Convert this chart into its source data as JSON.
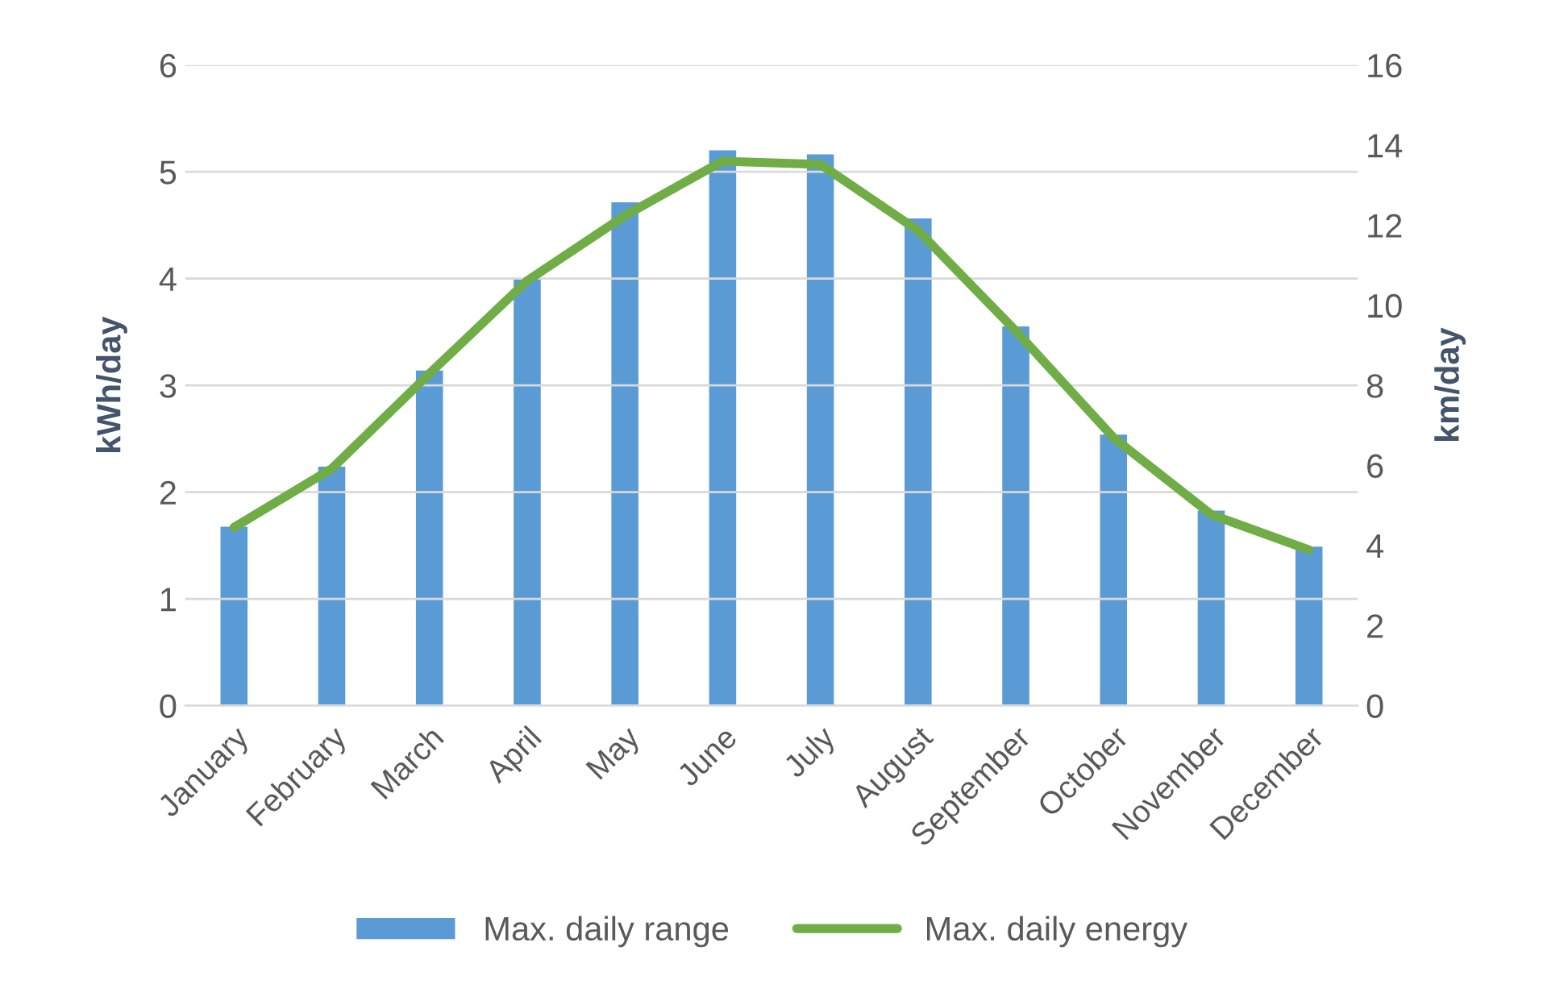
{
  "chart_data": {
    "type": "bar",
    "ylabel": "kWh/day",
    "y2label": "km/day",
    "categories": [
      "January",
      "February",
      "March",
      "April",
      "May",
      "June",
      "July",
      "August",
      "September",
      "October",
      "November",
      "December"
    ],
    "series": [
      {
        "name": "Max. daily range",
        "axis": "y2",
        "color": "#5b9bd5",
        "values": [
          4.5,
          6.0,
          8.4,
          10.7,
          12.6,
          13.9,
          13.8,
          12.2,
          9.5,
          6.8,
          4.9,
          4.0
        ]
      },
      {
        "name": "Max. daily energy",
        "type": "line",
        "axis": "y",
        "color": "#70ad47",
        "values": [
          1.67,
          2.22,
          3.11,
          3.98,
          4.59,
          5.1,
          5.07,
          4.45,
          3.51,
          2.51,
          1.79,
          1.46
        ]
      }
    ],
    "ylim": [
      0,
      6
    ],
    "yticks": [
      0,
      1,
      2,
      3,
      4,
      5,
      6
    ],
    "y2lim": [
      0,
      16
    ],
    "y2ticks": [
      0,
      2,
      4,
      6,
      8,
      10,
      12,
      14,
      16
    ],
    "grid": "y",
    "legend": "bottom",
    "marker": "none",
    "line_style": "solid"
  }
}
